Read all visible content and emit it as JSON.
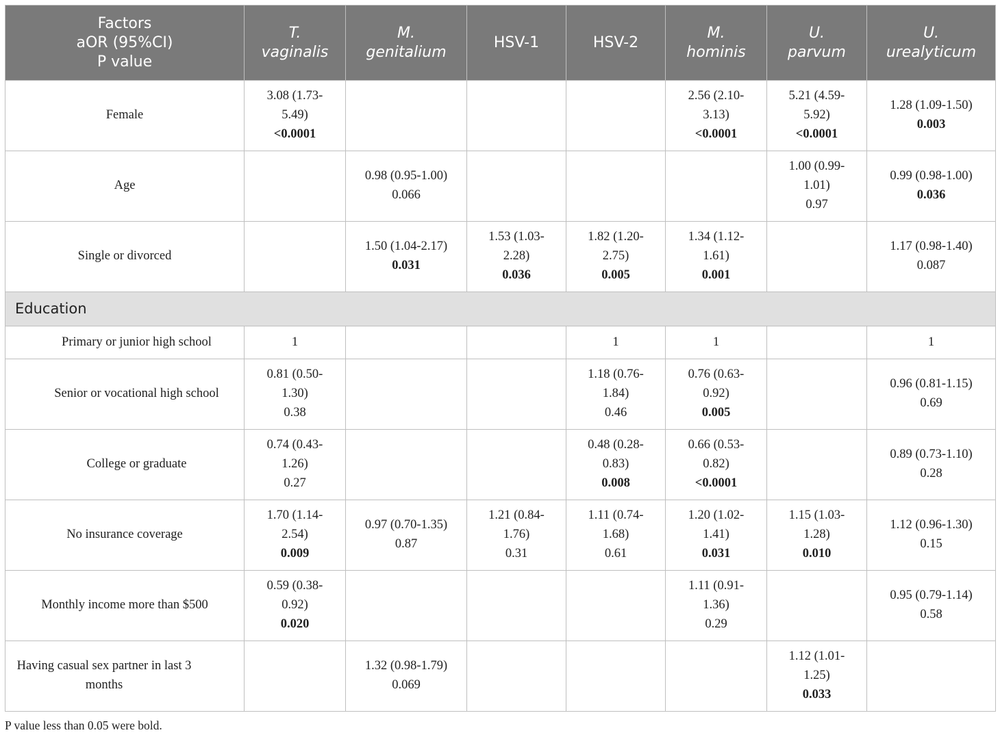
{
  "table": {
    "headers": [
      {
        "lines": [
          "Factors",
          "aOR (95%CI)",
          "P value"
        ],
        "italic": false
      },
      {
        "lines": [
          "T.",
          "vaginalis"
        ],
        "italic": true
      },
      {
        "lines": [
          "M.",
          "genitalium"
        ],
        "italic": true
      },
      {
        "lines": [
          "HSV-1"
        ],
        "italic": false
      },
      {
        "lines": [
          "HSV-2"
        ],
        "italic": false
      },
      {
        "lines": [
          "M.",
          "hominis"
        ],
        "italic": true
      },
      {
        "lines": [
          "U.",
          "parvum"
        ],
        "italic": true
      },
      {
        "lines": [
          "U.",
          "urealyticum"
        ],
        "italic": true
      }
    ],
    "rows": [
      {
        "type": "data",
        "label": "Female",
        "indent": false,
        "cells": [
          {
            "lines": [
              "3.08 (1.73-",
              "5.49)"
            ],
            "p": "<0.0001",
            "bold": true
          },
          null,
          null,
          null,
          {
            "lines": [
              "2.56 (2.10-",
              "3.13)"
            ],
            "p": "<0.0001",
            "bold": true
          },
          {
            "lines": [
              "5.21 (4.59-",
              "5.92)"
            ],
            "p": "<0.0001",
            "bold": true
          },
          {
            "lines": [
              "1.28 (1.09-1.50)"
            ],
            "p": "0.003",
            "bold": true
          }
        ]
      },
      {
        "type": "data",
        "label": "Age",
        "indent": false,
        "cells": [
          null,
          {
            "lines": [
              "0.98 (0.95-1.00)"
            ],
            "p": "0.066",
            "bold": false
          },
          null,
          null,
          null,
          {
            "lines": [
              "1.00 (0.99-",
              "1.01)"
            ],
            "p": "0.97",
            "bold": false
          },
          {
            "lines": [
              "0.99 (0.98-1.00)"
            ],
            "p": "0.036",
            "bold": true
          }
        ]
      },
      {
        "type": "data",
        "label": "Single or divorced",
        "indent": false,
        "cells": [
          null,
          {
            "lines": [
              "1.50 (1.04-2.17)"
            ],
            "p": "0.031",
            "bold": true
          },
          {
            "lines": [
              "1.53 (1.03-",
              "2.28)"
            ],
            "p": "0.036",
            "bold": true
          },
          {
            "lines": [
              "1.82 (1.20-",
              "2.75)"
            ],
            "p": "0.005",
            "bold": true
          },
          {
            "lines": [
              "1.34 (1.12-",
              "1.61)"
            ],
            "p": "0.001",
            "bold": true
          },
          null,
          {
            "lines": [
              "1.17 (0.98-1.40)"
            ],
            "p": "0.087",
            "bold": false
          }
        ]
      },
      {
        "type": "section",
        "label": "Education"
      },
      {
        "type": "data",
        "label": "Primary or junior high school",
        "indent": true,
        "short": true,
        "cells": [
          {
            "lines": [],
            "p": "1",
            "bold": false
          },
          null,
          null,
          {
            "lines": [],
            "p": "1",
            "bold": false
          },
          {
            "lines": [],
            "p": "1",
            "bold": false
          },
          null,
          {
            "lines": [],
            "p": "1",
            "bold": false
          }
        ]
      },
      {
        "type": "data",
        "label": "Senior or vocational high school",
        "indent": true,
        "cells": [
          {
            "lines": [
              "0.81 (0.50-",
              "1.30)"
            ],
            "p": "0.38",
            "bold": false
          },
          null,
          null,
          {
            "lines": [
              "1.18 (0.76-",
              "1.84)"
            ],
            "p": "0.46",
            "bold": false
          },
          {
            "lines": [
              "0.76 (0.63-",
              "0.92)"
            ],
            "p": "0.005",
            "bold": true
          },
          null,
          {
            "lines": [
              "0.96 (0.81-1.15)"
            ],
            "p": "0.69",
            "bold": false
          }
        ]
      },
      {
        "type": "data",
        "label": "College or graduate",
        "indent": true,
        "cells": [
          {
            "lines": [
              "0.74 (0.43-",
              "1.26)"
            ],
            "p": "0.27",
            "bold": false
          },
          null,
          null,
          {
            "lines": [
              "0.48 (0.28-",
              "0.83)"
            ],
            "p": "0.008",
            "bold": true
          },
          {
            "lines": [
              "0.66 (0.53-",
              "0.82)"
            ],
            "p": "<0.0001",
            "bold": true
          },
          null,
          {
            "lines": [
              "0.89 (0.73-1.10)"
            ],
            "p": "0.28",
            "bold": false
          }
        ]
      },
      {
        "type": "data",
        "label": "No insurance coverage",
        "indent": false,
        "cells": [
          {
            "lines": [
              "1.70 (1.14-",
              "2.54)"
            ],
            "p": "0.009",
            "bold": true
          },
          {
            "lines": [
              "0.97 (0.70-1.35)"
            ],
            "p": "0.87",
            "bold": false
          },
          {
            "lines": [
              "1.21 (0.84-",
              "1.76)"
            ],
            "p": "0.31",
            "bold": false
          },
          {
            "lines": [
              "1.11 (0.74-",
              "1.68)"
            ],
            "p": "0.61",
            "bold": false
          },
          {
            "lines": [
              "1.20 (1.02-",
              "1.41)"
            ],
            "p": "0.031",
            "bold": true
          },
          {
            "lines": [
              "1.15 (1.03-",
              "1.28)"
            ],
            "p": "0.010",
            "bold": true
          },
          {
            "lines": [
              "1.12 (0.96-1.30)"
            ],
            "p": "0.15",
            "bold": false
          }
        ]
      },
      {
        "type": "data",
        "label": "Monthly income more than $500",
        "indent": false,
        "cells": [
          {
            "lines": [
              "0.59 (0.38-",
              "0.92)"
            ],
            "p": "0.020",
            "bold": true
          },
          null,
          null,
          null,
          {
            "lines": [
              "1.11 (0.91-",
              "1.36)"
            ],
            "p": "0.29",
            "bold": false
          },
          null,
          {
            "lines": [
              "0.95 (0.79-1.14)"
            ],
            "p": "0.58",
            "bold": false
          }
        ]
      },
      {
        "type": "data",
        "label": "Having casual sex partner in last 3 months",
        "indent": false,
        "cells": [
          null,
          {
            "lines": [
              "1.32 (0.98-1.79)"
            ],
            "p": "0.069",
            "bold": false
          },
          null,
          null,
          null,
          {
            "lines": [
              "1.12 (1.01-",
              "1.25)"
            ],
            "p": "0.033",
            "bold": true
          },
          null
        ]
      }
    ]
  },
  "footnote": "P value less than 0.05 were bold."
}
